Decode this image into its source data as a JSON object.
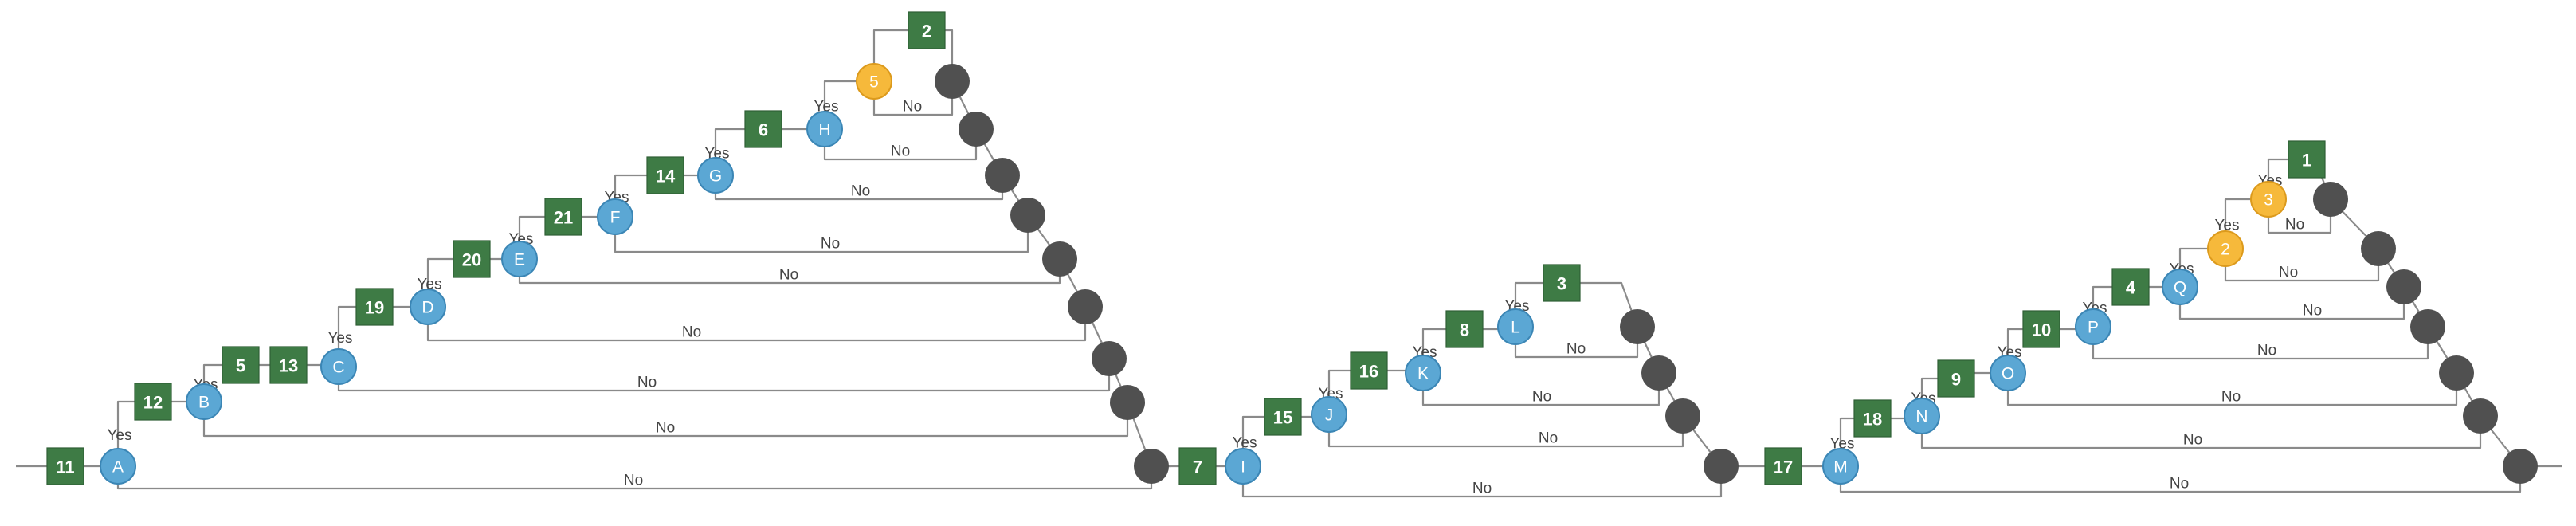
{
  "diagram": {
    "colors": {
      "action": "#3e7b45",
      "condition": "#5ba7d4",
      "condition_highlight": "#f6b93b",
      "junction": "#505050",
      "wire": "#8a8a8a"
    },
    "branch_labels": {
      "yes": "Yes",
      "no": "No"
    },
    "nodes": {
      "s11": {
        "shape": "square",
        "label": "11"
      },
      "A": {
        "shape": "circle",
        "label": "A"
      },
      "s12": {
        "shape": "square",
        "label": "12"
      },
      "B": {
        "shape": "circle",
        "label": "B"
      },
      "s5b": {
        "shape": "square",
        "label": "5"
      },
      "s13": {
        "shape": "square",
        "label": "13"
      },
      "C": {
        "shape": "circle",
        "label": "C"
      },
      "s19": {
        "shape": "square",
        "label": "19"
      },
      "D": {
        "shape": "circle",
        "label": "D"
      },
      "s20": {
        "shape": "square",
        "label": "20"
      },
      "E": {
        "shape": "circle",
        "label": "E"
      },
      "s21": {
        "shape": "square",
        "label": "21"
      },
      "F": {
        "shape": "circle",
        "label": "F"
      },
      "s14": {
        "shape": "square",
        "label": "14"
      },
      "G": {
        "shape": "circle",
        "label": "G"
      },
      "s6": {
        "shape": "square",
        "label": "6"
      },
      "H": {
        "shape": "circle",
        "label": "H"
      },
      "c5": {
        "shape": "circle",
        "label": "5",
        "highlight": true
      },
      "s2": {
        "shape": "square",
        "label": "2"
      },
      "s7": {
        "shape": "square",
        "label": "7"
      },
      "I": {
        "shape": "circle",
        "label": "I"
      },
      "s15": {
        "shape": "square",
        "label": "15"
      },
      "J": {
        "shape": "circle",
        "label": "J"
      },
      "s16": {
        "shape": "square",
        "label": "16"
      },
      "K": {
        "shape": "circle",
        "label": "K"
      },
      "s8": {
        "shape": "square",
        "label": "8"
      },
      "L": {
        "shape": "circle",
        "label": "L"
      },
      "s3": {
        "shape": "square",
        "label": "3"
      },
      "s17": {
        "shape": "square",
        "label": "17"
      },
      "M": {
        "shape": "circle",
        "label": "M"
      },
      "s18": {
        "shape": "square",
        "label": "18"
      },
      "N": {
        "shape": "circle",
        "label": "N"
      },
      "s9": {
        "shape": "square",
        "label": "9"
      },
      "O": {
        "shape": "circle",
        "label": "O"
      },
      "s10": {
        "shape": "square",
        "label": "10"
      },
      "P": {
        "shape": "circle",
        "label": "P"
      },
      "s4": {
        "shape": "square",
        "label": "4"
      },
      "Q": {
        "shape": "circle",
        "label": "Q"
      },
      "c2": {
        "shape": "circle",
        "label": "2",
        "highlight": true
      },
      "c3": {
        "shape": "circle",
        "label": "3",
        "highlight": true
      },
      "s1": {
        "shape": "square",
        "label": "1"
      }
    }
  }
}
